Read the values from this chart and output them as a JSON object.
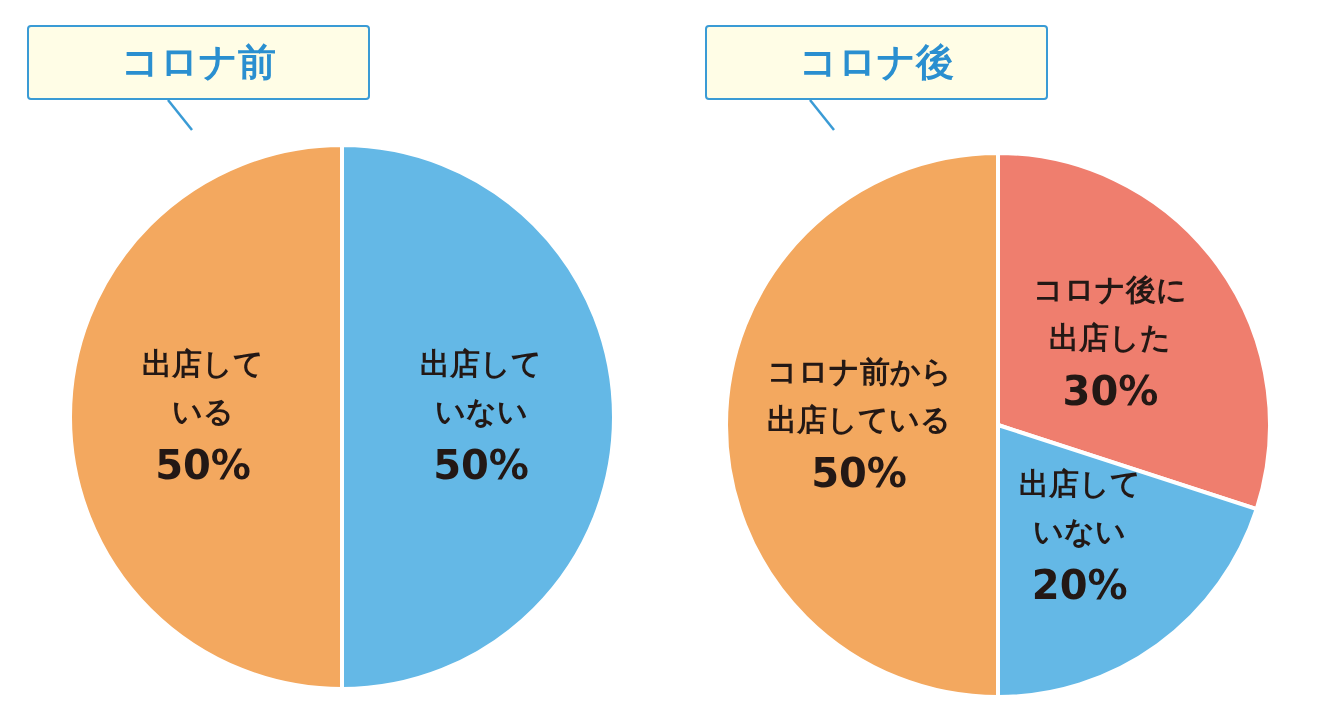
{
  "chart_data": [
    {
      "type": "pie",
      "title": "コロナ前",
      "categories": [
        "出店していない",
        "出店している"
      ],
      "values": [
        50,
        50
      ],
      "colors": [
        "#64b8e6",
        "#f3a85f"
      ],
      "value_labels": [
        "50%",
        "50%"
      ],
      "legend": false
    },
    {
      "type": "pie",
      "title": "コロナ後",
      "categories": [
        "コロナ後に出店した",
        "出店していない",
        "コロナ前から出店している"
      ],
      "values": [
        30,
        20,
        50
      ],
      "colors": [
        "#ef7e6e",
        "#64b8e6",
        "#f3a85f"
      ],
      "value_labels": [
        "30%",
        "20%",
        "50%"
      ],
      "legend": false
    }
  ]
}
